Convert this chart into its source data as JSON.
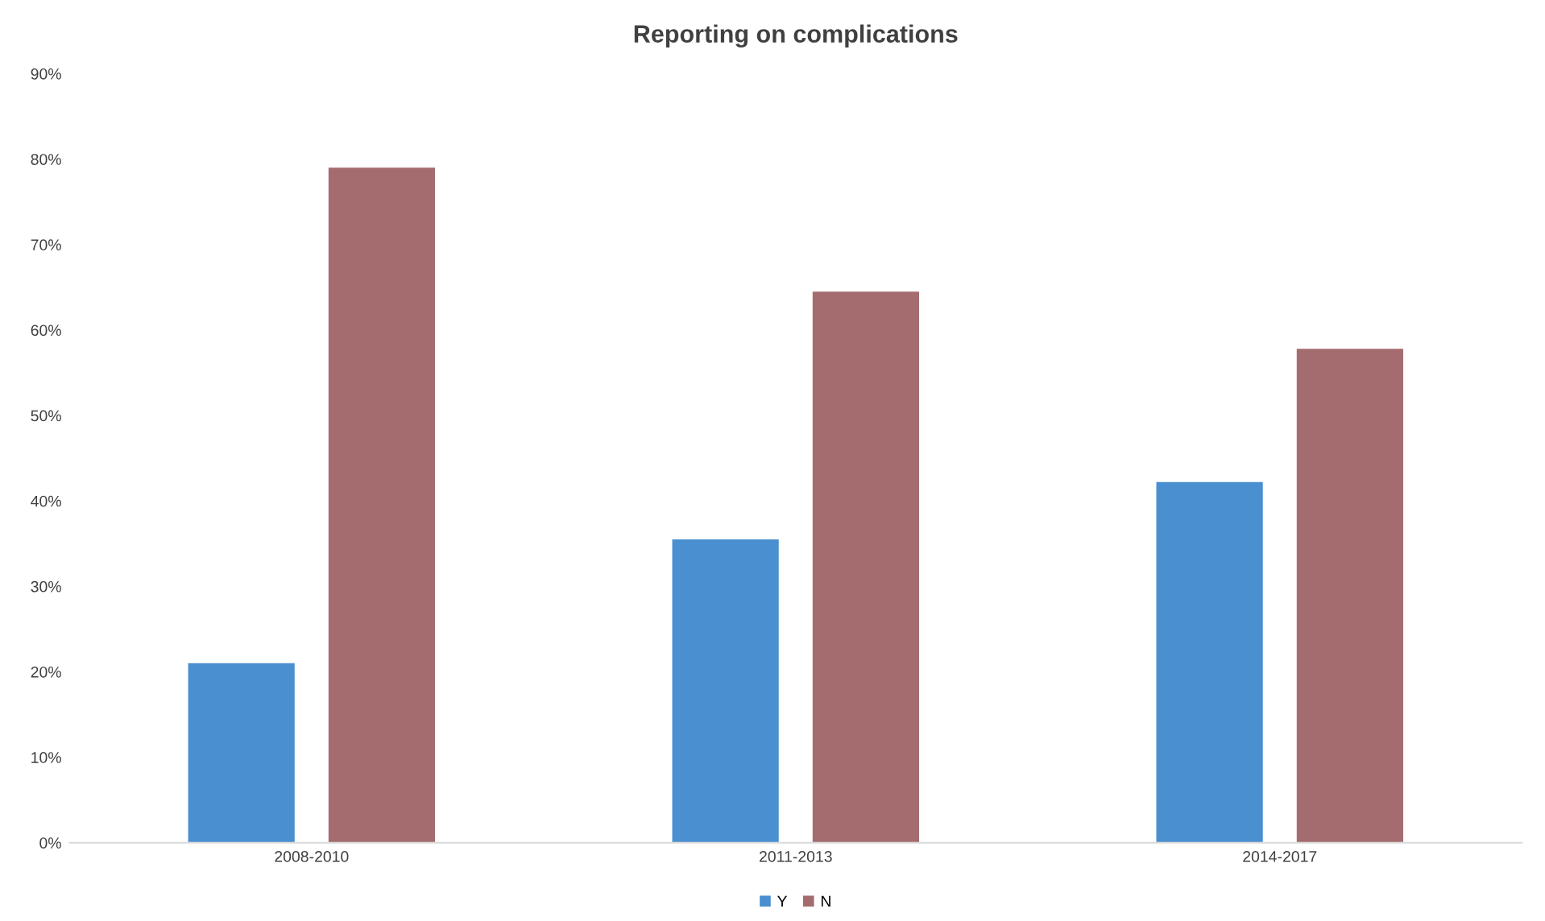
{
  "chart_data": {
    "type": "bar",
    "title": "Reporting on complications",
    "categories": [
      "2008-2010",
      "2011-2013",
      "2014-2017"
    ],
    "series": [
      {
        "name": "Y",
        "color": "#4a8fd0",
        "values": [
          21,
          35.5,
          42.2
        ]
      },
      {
        "name": "N",
        "color": "#a46c6e",
        "values": [
          79,
          64.5,
          57.8
        ]
      }
    ],
    "ylim": [
      0,
      90
    ],
    "yticks": [
      {
        "value": 0,
        "label": "0%"
      },
      {
        "value": 10,
        "label": "10%"
      },
      {
        "value": 20,
        "label": "20%"
      },
      {
        "value": 30,
        "label": "30%"
      },
      {
        "value": 40,
        "label": "40%"
      },
      {
        "value": 50,
        "label": "50%"
      },
      {
        "value": 60,
        "label": "60%"
      },
      {
        "value": 70,
        "label": "70%"
      },
      {
        "value": 80,
        "label": "80%"
      },
      {
        "value": 90,
        "label": "90%"
      }
    ],
    "grid": false,
    "legend": "bottom"
  }
}
